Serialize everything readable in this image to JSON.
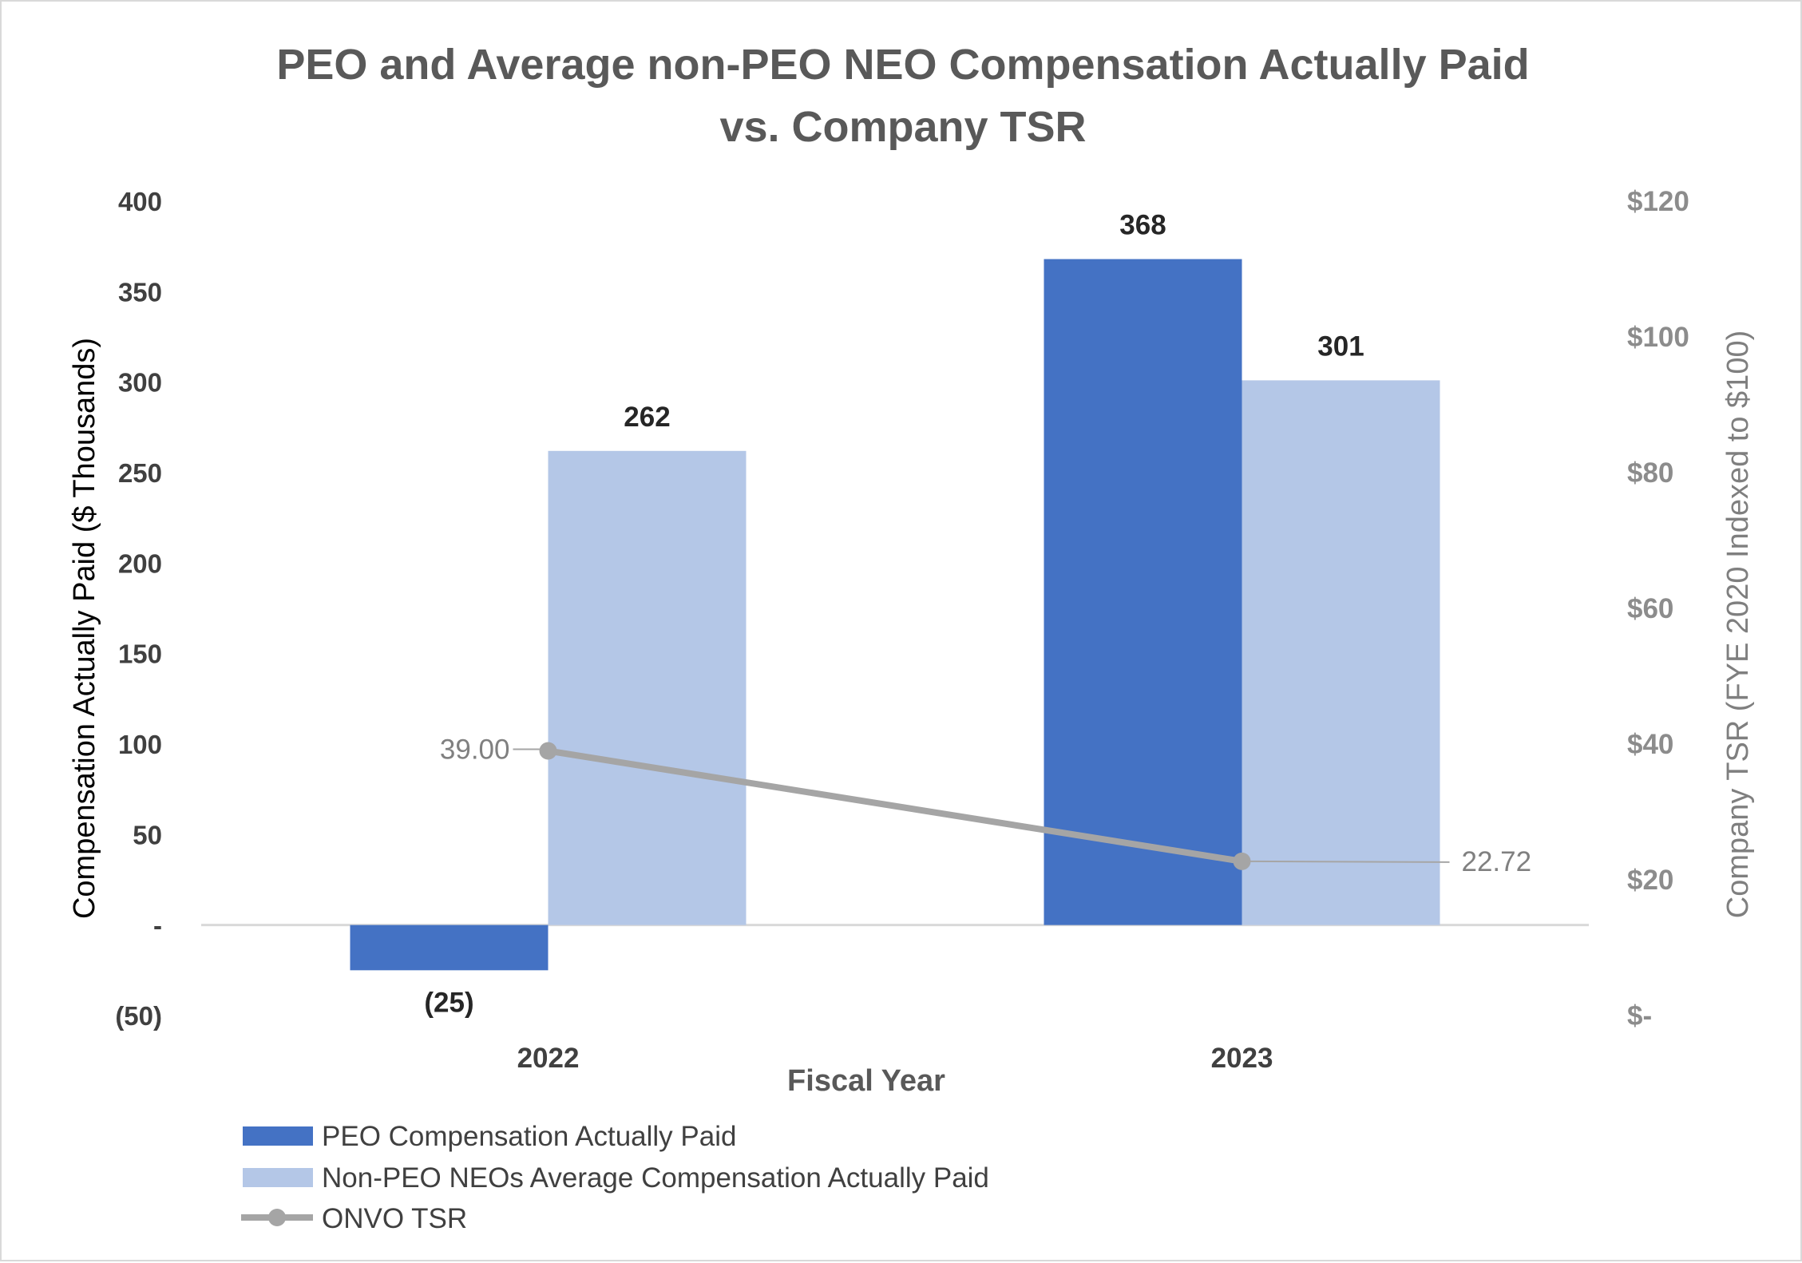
{
  "chart_data": {
    "type": "bar",
    "title_lines": [
      "PEO and Average non-PEO NEO Compensation Actually Paid",
      "vs. Company TSR"
    ],
    "xlabel": "Fiscal Year",
    "ylabel": "Compensation Actually Paid ($ Thousands)",
    "y2label": "Company TSR (FYE 2020 Indexed to $100)",
    "categories": [
      "2022",
      "2023"
    ],
    "ylim": [
      -50,
      400
    ],
    "y_ticks": [
      400,
      350,
      300,
      250,
      200,
      150,
      100,
      50,
      0,
      -50
    ],
    "y_tick_labels": [
      "400",
      "350",
      "300",
      "250",
      "200",
      "150",
      "100",
      "50",
      "-",
      "(50)"
    ],
    "y2lim": [
      0,
      120
    ],
    "y2_ticks": [
      120,
      100,
      80,
      60,
      40,
      20,
      0
    ],
    "y2_tick_labels": [
      "$120",
      "$100",
      "$80",
      "$60",
      "$40",
      "$20",
      "$-"
    ],
    "series": [
      {
        "name": "PEO Compensation Actually Paid",
        "kind": "bar",
        "axis": "left",
        "color": "#4472c4",
        "values": [
          -25,
          368
        ],
        "labels": [
          "(25)",
          "368"
        ]
      },
      {
        "name": "Non-PEO NEOs Average Compensation Actually Paid",
        "kind": "bar",
        "axis": "left",
        "color": "#b4c7e7",
        "values": [
          262,
          301
        ],
        "labels": [
          "262",
          "301"
        ]
      },
      {
        "name": "ONVO TSR",
        "kind": "line",
        "axis": "right",
        "color": "#a5a5a5",
        "values": [
          39.0,
          22.72
        ],
        "labels": [
          "39.00",
          "22.72"
        ]
      }
    ],
    "legend": "bottom-left"
  }
}
